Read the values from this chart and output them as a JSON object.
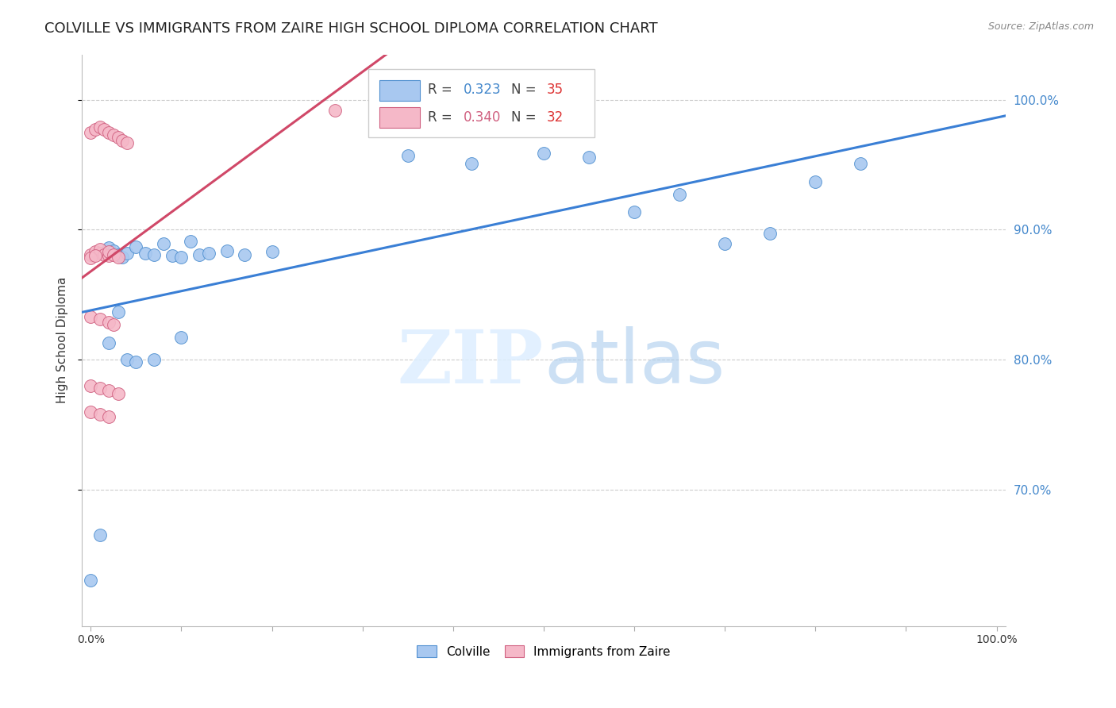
{
  "title": "COLVILLE VS IMMIGRANTS FROM ZAIRE HIGH SCHOOL DIPLOMA CORRELATION CHART",
  "source": "Source: ZipAtlas.com",
  "ylabel": "High School Diploma",
  "x_min": -0.01,
  "x_max": 1.01,
  "y_min": 0.595,
  "y_max": 1.035,
  "blue_scatter_color": "#a8c8f0",
  "blue_edge_color": "#5090d0",
  "pink_scatter_color": "#f5b8c8",
  "pink_edge_color": "#d06080",
  "blue_line_color": "#3a7fd5",
  "pink_line_color": "#d04868",
  "blue_R": "0.323",
  "blue_N": "35",
  "pink_R": "0.340",
  "pink_N": "32",
  "R_color": "#4488cc",
  "N_blue_color": "#dd3333",
  "N_pink_color": "#dd3333",
  "y_ticks": [
    0.7,
    0.8,
    0.9,
    1.0
  ],
  "y_tick_labels": [
    "70.0%",
    "80.0%",
    "90.0%",
    "100.0%"
  ],
  "colville_x": [
    0.0,
    0.01,
    0.02,
    0.025,
    0.03,
    0.035,
    0.04,
    0.05,
    0.06,
    0.07,
    0.08,
    0.09,
    0.1,
    0.11,
    0.12,
    0.13,
    0.15,
    0.17,
    0.2,
    0.35,
    0.42,
    0.5,
    0.55,
    0.6,
    0.65,
    0.7,
    0.75,
    0.8,
    0.85,
    0.02,
    0.03,
    0.04,
    0.05,
    0.07,
    0.1
  ],
  "colville_y": [
    0.63,
    0.665,
    0.886,
    0.884,
    0.881,
    0.879,
    0.882,
    0.887,
    0.882,
    0.881,
    0.889,
    0.88,
    0.879,
    0.891,
    0.881,
    0.882,
    0.884,
    0.881,
    0.883,
    0.957,
    0.951,
    0.959,
    0.956,
    0.914,
    0.927,
    0.889,
    0.897,
    0.937,
    0.951,
    0.813,
    0.837,
    0.8,
    0.798,
    0.8,
    0.817
  ],
  "zaire_x": [
    0.0,
    0.005,
    0.01,
    0.01,
    0.015,
    0.02,
    0.02,
    0.025,
    0.03,
    0.0,
    0.005,
    0.01,
    0.015,
    0.02,
    0.025,
    0.03,
    0.035,
    0.04,
    0.0,
    0.01,
    0.02,
    0.025,
    0.0,
    0.01,
    0.02,
    0.03,
    0.0,
    0.01,
    0.02,
    0.27,
    0.0,
    0.005
  ],
  "zaire_y": [
    0.881,
    0.883,
    0.882,
    0.885,
    0.881,
    0.88,
    0.883,
    0.881,
    0.879,
    0.975,
    0.977,
    0.979,
    0.977,
    0.975,
    0.973,
    0.971,
    0.969,
    0.967,
    0.833,
    0.831,
    0.829,
    0.827,
    0.78,
    0.778,
    0.776,
    0.774,
    0.76,
    0.758,
    0.756,
    0.992,
    0.878,
    0.88
  ]
}
